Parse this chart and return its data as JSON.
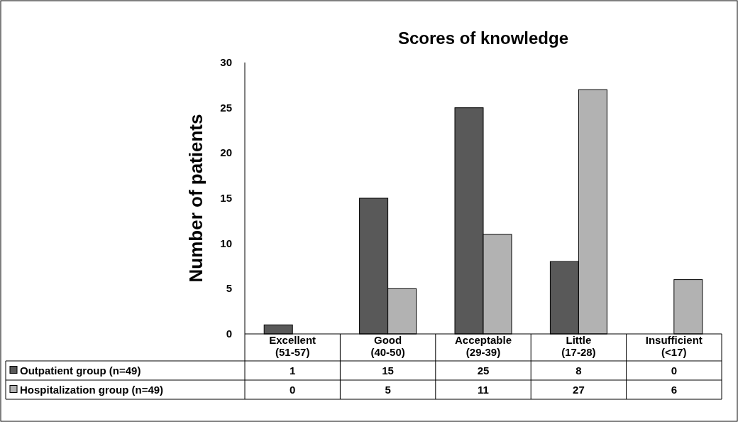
{
  "chart_data": {
    "type": "bar",
    "title": "Scores of knowledge",
    "ylabel": "Number of patients",
    "categories": [
      "Excellent\n(51-57)",
      "Good\n(40-50)",
      "Acceptable\n(29-39)",
      "Little\n(17-28)",
      "Insufficient\n(<17)"
    ],
    "series": [
      {
        "name": "Outpatient group  (n=49)",
        "color": "#595959",
        "values": [
          1,
          15,
          25,
          8,
          0
        ]
      },
      {
        "name": "Hospitalization group  (n=49)",
        "color": "#b2b2b2",
        "values": [
          0,
          5,
          11,
          27,
          6
        ]
      }
    ],
    "ylim": [
      0,
      30
    ],
    "yticks": [
      0,
      5,
      10,
      15,
      20,
      25,
      30
    ],
    "grid": false,
    "legend": "bottom",
    "data_labels": true
  }
}
